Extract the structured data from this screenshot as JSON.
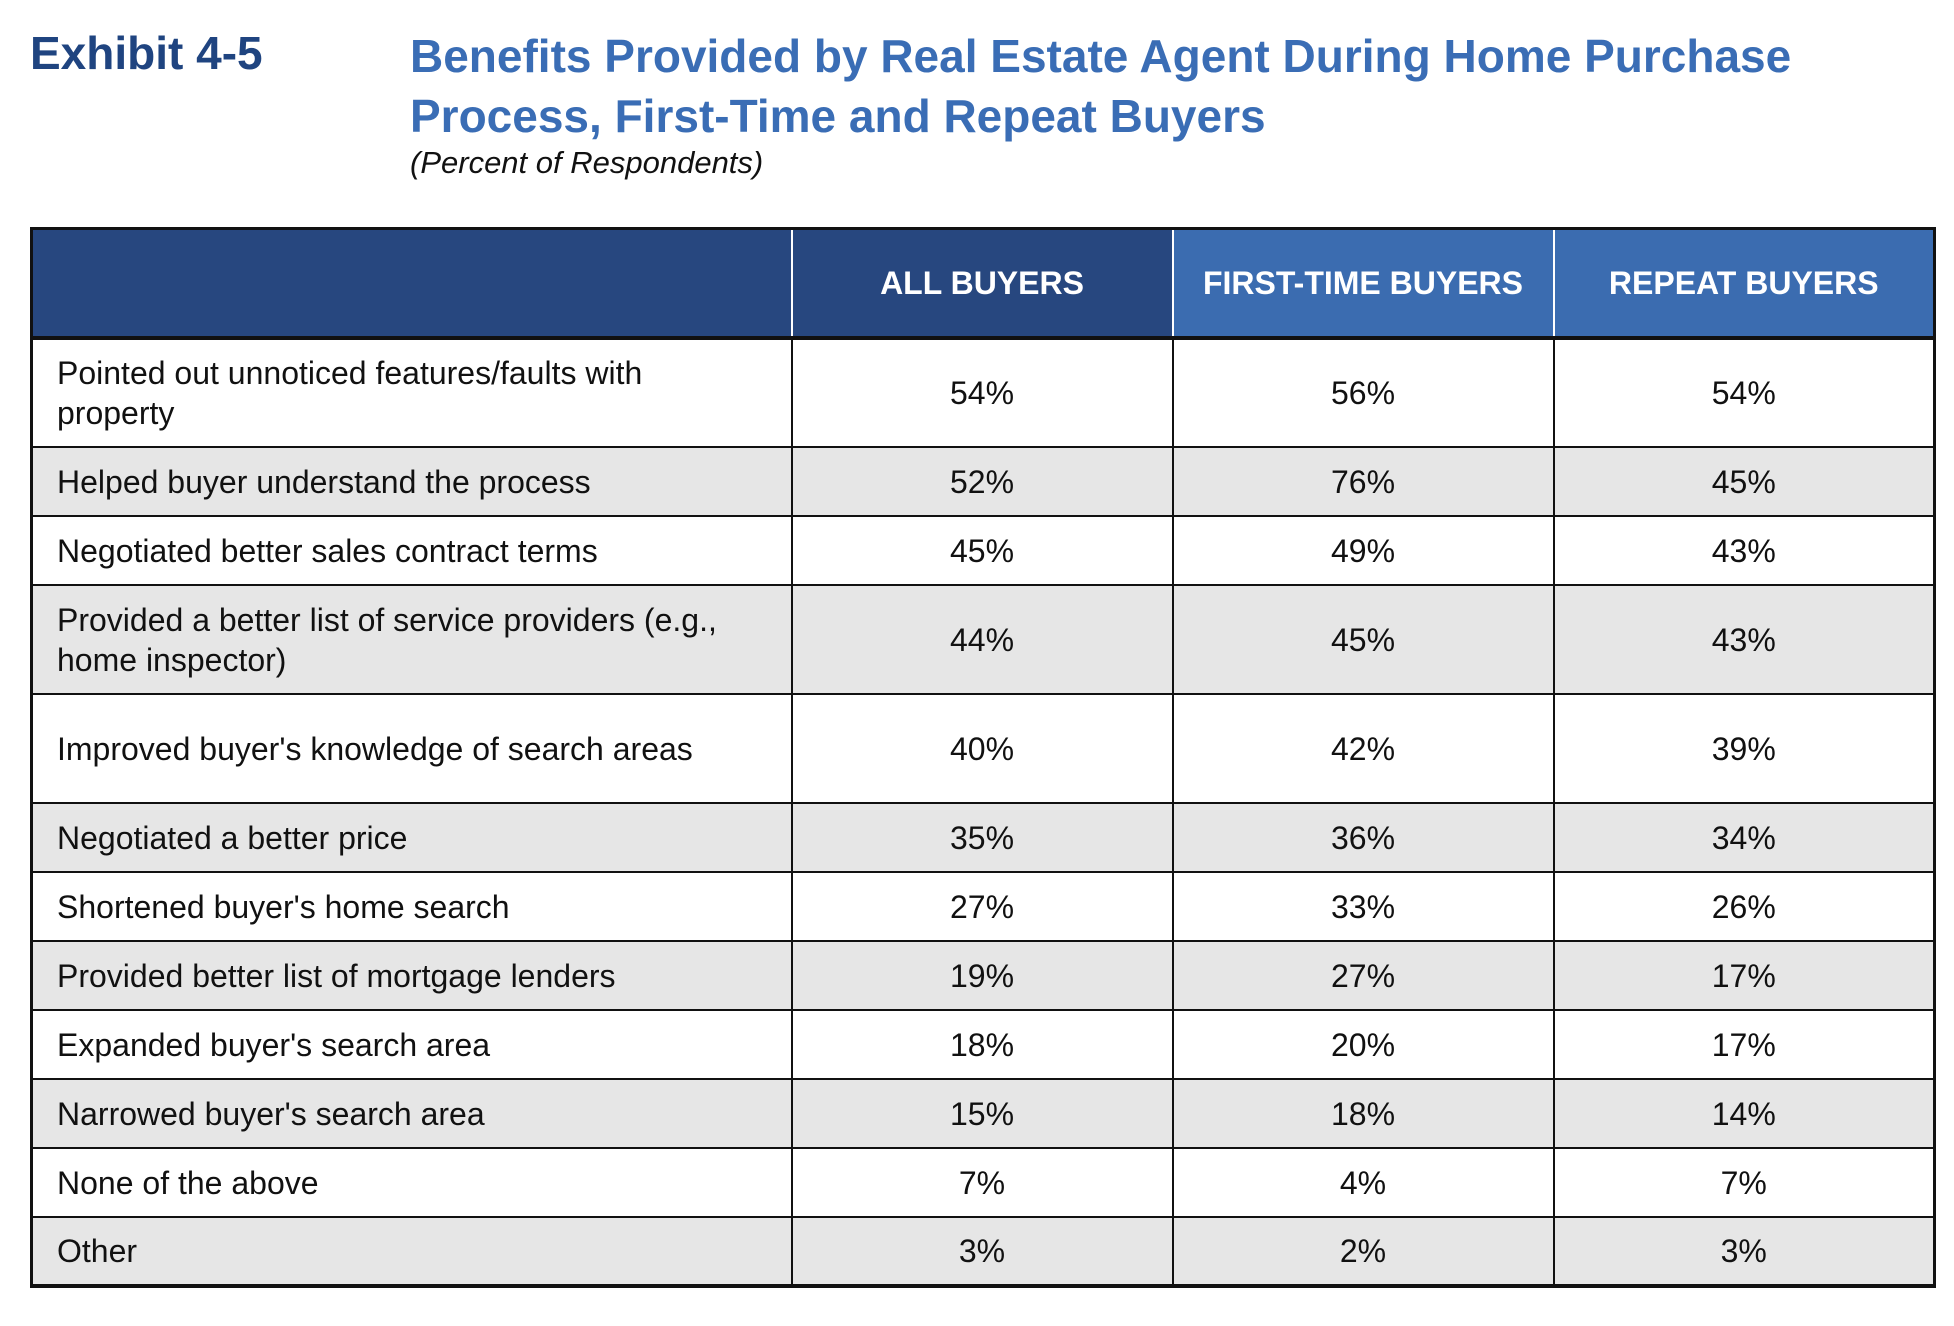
{
  "header": {
    "exhibit": "Exhibit 4-5",
    "title": "Benefits Provided by Real Estate Agent During Home Purchase Process, First-Time and Repeat Buyers",
    "subtitle": "(Percent of Respondents)"
  },
  "table": {
    "columns": [
      "",
      "ALL BUYERS",
      "FIRST-TIME BUYERS",
      "REPEAT BUYERS"
    ],
    "rows": [
      {
        "label": "Pointed out unnoticed features/faults with property",
        "all": "54%",
        "first": "56%",
        "repeat": "54%"
      },
      {
        "label": "Helped buyer understand the process",
        "all": "52%",
        "first": "76%",
        "repeat": "45%"
      },
      {
        "label": "Negotiated better sales contract terms",
        "all": "45%",
        "first": "49%",
        "repeat": "43%"
      },
      {
        "label": "Provided a better list of service providers (e.g., home inspector)",
        "all": "44%",
        "first": "45%",
        "repeat": "43%"
      },
      {
        "label": "Improved buyer's knowledge of search areas",
        "all": "40%",
        "first": "42%",
        "repeat": "39%"
      },
      {
        "label": "Negotiated a better price",
        "all": "35%",
        "first": "36%",
        "repeat": "34%"
      },
      {
        "label": "Shortened buyer's home search",
        "all": "27%",
        "first": "33%",
        "repeat": "26%"
      },
      {
        "label": "Provided better list of mortgage lenders",
        "all": "19%",
        "first": "27%",
        "repeat": "17%"
      },
      {
        "label": "Expanded buyer's search area",
        "all": "18%",
        "first": "20%",
        "repeat": "17%"
      },
      {
        "label": "Narrowed buyer's search area",
        "all": "15%",
        "first": "18%",
        "repeat": "14%"
      },
      {
        "label": "None of the above",
        "all": "7%",
        "first": "4%",
        "repeat": "7%"
      },
      {
        "label": "Other",
        "all": "3%",
        "first": "2%",
        "repeat": "3%"
      }
    ]
  },
  "colors": {
    "exhibit": "#1f4480",
    "title": "#3a6db5",
    "header_dark": "#27477f",
    "header_light": "#3b6cb0",
    "row_alt": "#e6e6e6"
  }
}
